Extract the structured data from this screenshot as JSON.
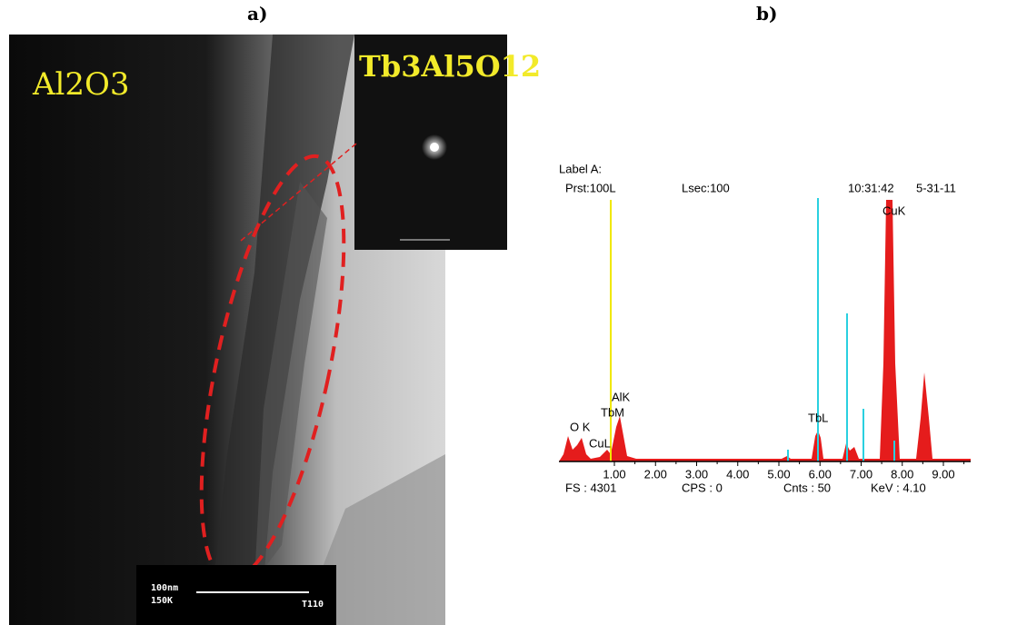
{
  "panel_a": {
    "label": "a)",
    "matrix_label": "Al2O3",
    "inset_label": "Tb3Al5O12",
    "scale_bar": {
      "length": "100nm",
      "magnification": "150K",
      "code": "T110"
    }
  },
  "panel_b": {
    "label": "b)",
    "header": {
      "label": "Label A:",
      "preset": "Prst:100L",
      "live_time": "Lsec:100",
      "time": "10:31:42",
      "date": "5-31-11"
    },
    "peaks": [
      "O K",
      "CuL",
      "AlK",
      "TbM",
      "TbL",
      "CuK"
    ],
    "xticks": [
      {
        "value": 1,
        "label": "1.00"
      },
      {
        "value": 2,
        "label": "2.00"
      },
      {
        "value": 3,
        "label": "3.00"
      },
      {
        "value": 4,
        "label": "4.00"
      },
      {
        "value": 5,
        "label": "5.00"
      },
      {
        "value": 6,
        "label": "6.00"
      },
      {
        "value": 7,
        "label": "7.00"
      },
      {
        "value": 8,
        "label": "8.00"
      },
      {
        "value": 9,
        "label": "9.00"
      }
    ],
    "footer": {
      "full_scale": "FS : 4301",
      "cps": "CPS : 0",
      "counts": "Cnts : 50",
      "kev": "KeV : 4.10"
    }
  }
}
